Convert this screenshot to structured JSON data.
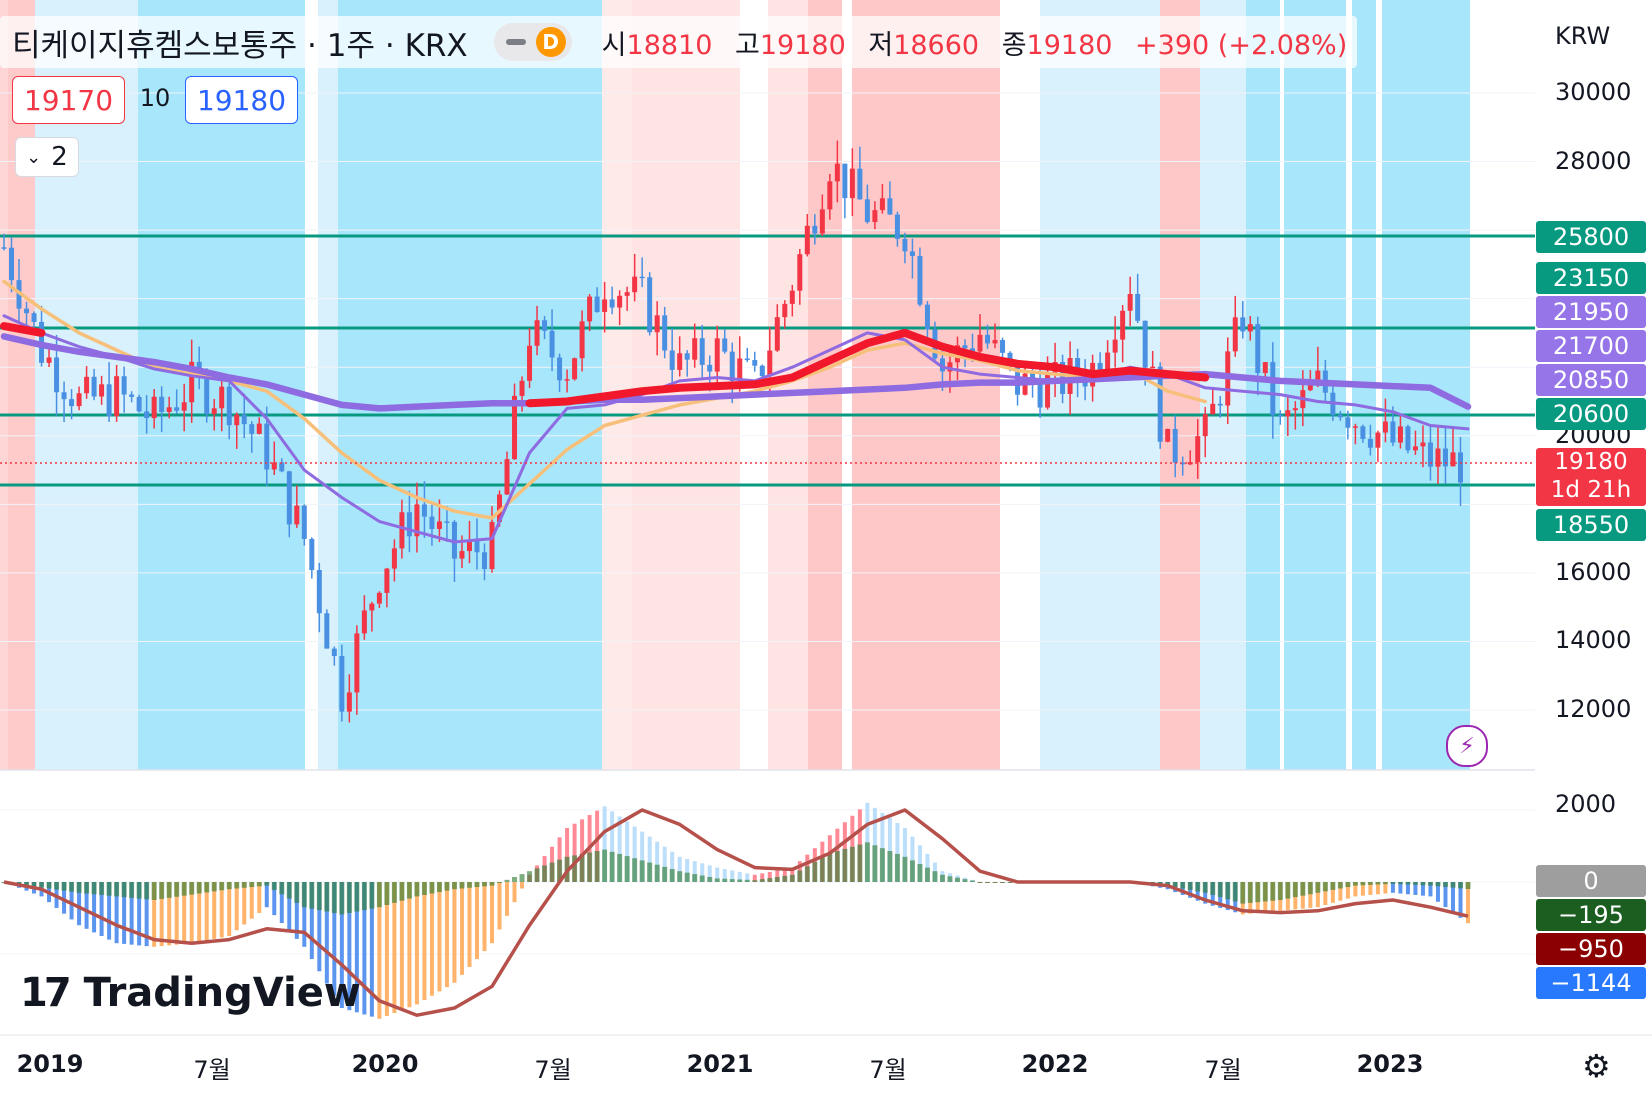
{
  "header": {
    "title": "티케이지휴켐스보통주 · 1주 · KRX",
    "interval_badge": "D",
    "ohlc": {
      "open_label": "시",
      "open": "18810",
      "high_label": "고",
      "high": "19180",
      "low_label": "저",
      "low": "18660",
      "close_label": "종",
      "close": "19180",
      "change": "+390 (+2.08%)"
    }
  },
  "trade": {
    "sell": "19170",
    "qty": "10",
    "buy": "19180"
  },
  "collapse_count": "2",
  "currency": "KRW",
  "price_axis": [
    "30000",
    "28000",
    "20000",
    "16000",
    "14000",
    "12000"
  ],
  "macd_axis": [
    "2000"
  ],
  "time_axis": [
    {
      "label": "2019",
      "bold": true,
      "date": "2019-01"
    },
    {
      "label": "7월",
      "bold": false,
      "date": "2019-07"
    },
    {
      "label": "2020",
      "bold": true,
      "date": "2020-01"
    },
    {
      "label": "7월",
      "bold": false,
      "date": "2020-07"
    },
    {
      "label": "2021",
      "bold": true,
      "date": "2021-01"
    },
    {
      "label": "7월",
      "bold": false,
      "date": "2021-07"
    },
    {
      "label": "2022",
      "bold": true,
      "date": "2022-01"
    },
    {
      "label": "7월",
      "bold": false,
      "date": "2022-07"
    },
    {
      "label": "2023",
      "bold": true,
      "date": "2023-01"
    }
  ],
  "price_badges": [
    {
      "label": "25800",
      "color": "#089981"
    },
    {
      "label": "23150",
      "color": "#089981"
    },
    {
      "label": "21950",
      "color": "#9575e8"
    },
    {
      "label": "21700",
      "color": "#9575e8"
    },
    {
      "label": "20850",
      "color": "#9575e8"
    },
    {
      "label": "20600",
      "color": "#089981"
    },
    {
      "label": "18550",
      "color": "#089981"
    }
  ],
  "last_price": {
    "label": "19180",
    "countdown": "1d 21h",
    "color": "#f23645"
  },
  "macd_badges": [
    {
      "label": "0",
      "color": "#9e9e9e"
    },
    {
      "label": "−195",
      "color": "#1b5e20"
    },
    {
      "label": "−950",
      "color": "#8b0000"
    },
    {
      "label": "−1144",
      "color": "#2979ff"
    }
  ],
  "logo_text": "TradingView",
  "colors": {
    "up": "#f23645",
    "down": "#4a90e2",
    "level": "#089981",
    "ma_purple": "#8e6be0",
    "ma_red": "#f0182a",
    "ma_orange": "#f7c07a"
  },
  "chart_data": {
    "type": "candlestick",
    "interval": "weekly",
    "currency": "KRW",
    "ylim": [
      10000,
      31000
    ],
    "horizontal_levels": [
      25800,
      23150,
      20600,
      18550
    ],
    "series": [
      {
        "name": "close",
        "x": [
          "2018-12",
          "2019-01",
          "2019-03",
          "2019-05",
          "2019-07",
          "2019-09",
          "2019-11",
          "2020-01",
          "2020-03",
          "2020-04",
          "2020-05",
          "2020-06",
          "2020-07",
          "2020-08",
          "2020-09",
          "2020-10",
          "2020-12",
          "2021-01",
          "2021-03",
          "2021-05",
          "2021-07",
          "2021-08",
          "2021-09",
          "2021-10",
          "2021-11",
          "2021-12",
          "2022-01",
          "2022-02",
          "2022-04",
          "2022-05",
          "2022-06",
          "2022-07",
          "2022-08",
          "2022-09",
          "2022-10",
          "2022-11",
          "2022-12",
          "2023-01",
          "2023-02",
          "2023-03"
        ],
        "values": [
          25500,
          22500,
          21000,
          21200,
          20500,
          21500,
          21000,
          19500,
          17000,
          12500,
          16000,
          18000,
          16500,
          16800,
          23000,
          22000,
          24500,
          24000,
          22000,
          22500,
          21500,
          24500,
          28000,
          26500,
          26000,
          22000,
          23000,
          21500,
          21500,
          22000,
          24500,
          19500,
          20000,
          23500,
          20200,
          21500,
          20500,
          19800,
          19300,
          19180
        ]
      },
      {
        "name": "ma_purple_slow",
        "values": [
          22900,
          22650,
          22450,
          22300,
          22150,
          21950,
          21700,
          21500,
          21200,
          20900,
          20800,
          20850,
          20900,
          20950,
          20950,
          21000,
          21050,
          21050,
          21100,
          21150,
          21200,
          21250,
          21300,
          21350,
          21400,
          21500,
          21550,
          21550,
          21600,
          21650,
          21700,
          21750,
          21800,
          21700,
          21600,
          21550,
          21500,
          21450,
          21400,
          20850
        ]
      },
      {
        "name": "ma_purple_fast",
        "values": [
          23500,
          23000,
          22600,
          22300,
          21950,
          21750,
          21600,
          20500,
          19000,
          18200,
          17500,
          17200,
          16900,
          17000,
          19500,
          20800,
          20900,
          21200,
          21600,
          21700,
          21600,
          22000,
          22500,
          23000,
          22800,
          22000,
          21800,
          21700,
          21600,
          21700,
          22000,
          21800,
          21400,
          21300,
          21200,
          21000,
          20900,
          20700,
          20300,
          20200
        ]
      },
      {
        "name": "ma_red",
        "values": [
          23200,
          23000,
          null,
          null,
          null,
          null,
          null,
          null,
          null,
          null,
          null,
          null,
          null,
          null,
          20950,
          21000,
          21150,
          21300,
          21400,
          21450,
          21500,
          21700,
          22200,
          22700,
          23000,
          22600,
          22300,
          22100,
          22000,
          21800,
          21900,
          21800,
          21700,
          null,
          null,
          null,
          null,
          null,
          null,
          null
        ]
      },
      {
        "name": "ma_orange",
        "values": [
          24500,
          23700,
          23000,
          22500,
          22000,
          21800,
          21600,
          21300,
          20500,
          19500,
          18700,
          18200,
          17800,
          17600,
          18600,
          19600,
          20300,
          20600,
          20900,
          21100,
          21300,
          21600,
          22000,
          22500,
          22700,
          22400,
          22200,
          21900,
          21800,
          21700,
          21900,
          21300,
          21000,
          null,
          null,
          null,
          null,
          null,
          null,
          null
        ]
      }
    ],
    "macd": {
      "ylim": [
        -3600,
        2700
      ],
      "histogram": [
        0,
        -400,
        -1200,
        -1700,
        -1800,
        -1700,
        -1500,
        -700,
        -1800,
        -3500,
        -3800,
        -3400,
        -2800,
        -1700,
        200,
        1500,
        2100,
        1400,
        700,
        400,
        200,
        400,
        1300,
        2200,
        1500,
        300,
        0,
        0,
        0,
        0,
        0,
        -200,
        -600,
        -900,
        -800,
        -700,
        -400,
        -300,
        -400,
        -1144
      ],
      "signal": [
        0,
        -200,
        -700,
        -1200,
        -1600,
        -1700,
        -1600,
        -1300,
        -1400,
        -2300,
        -3300,
        -3700,
        -3500,
        -2900,
        -1200,
        300,
        1400,
        2000,
        1600,
        900,
        400,
        350,
        800,
        1600,
        2000,
        1200,
        300,
        0,
        0,
        0,
        0,
        -100,
        -500,
        -800,
        -850,
        -800,
        -600,
        -500,
        -700,
        -950
      ],
      "macd_line": [
        0,
        -150,
        -300,
        -400,
        -500,
        -350,
        -200,
        -100,
        -700,
        -900,
        -700,
        -400,
        -200,
        -100,
        300,
        700,
        900,
        600,
        300,
        100,
        50,
        200,
        800,
        1100,
        700,
        200,
        0,
        0,
        0,
        0,
        0,
        -100,
        -300,
        -600,
        -500,
        -300,
        -100,
        -50,
        -100,
        -195
      ]
    }
  }
}
